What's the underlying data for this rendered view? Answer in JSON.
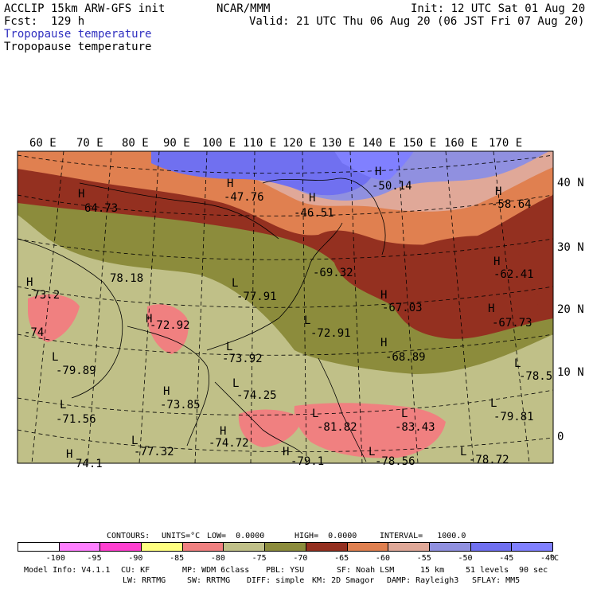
{
  "header": {
    "model_line": "ACCLIP 15km ARW-GFS init",
    "org": "NCAR/MMM",
    "init": "Init: 12 UTC Sat 01 Aug 20",
    "fcst": "Fcst:  129 h",
    "valid": "Valid: 21 UTC Thu 06 Aug 20 (06 JST Fri 07 Aug 20)",
    "field_label_1": "Tropopause temperature",
    "field_label_2": "Tropopause temperature"
  },
  "map": {
    "lon_labels": [
      "60 E",
      "70 E",
      "80 E",
      "90 E",
      "100 E",
      "110 E",
      "120 E",
      "130 E",
      "140 E",
      "150 E",
      "160 E",
      "170 E"
    ],
    "lat_labels": [
      "40 N",
      "30 N",
      "20 N",
      "10 N",
      "0"
    ],
    "extrema": [
      {
        "type": "H",
        "value": "64.73"
      },
      {
        "type": "H",
        "value": "-47.76"
      },
      {
        "type": "H",
        "value": "-46.51"
      },
      {
        "type": "H",
        "value": "-50.14"
      },
      {
        "type": "H",
        "value": "-58.64"
      },
      {
        "type": "H",
        "value": "-73.2"
      },
      {
        "type": "L",
        "value": "78.18"
      },
      {
        "type": "L",
        "value": "-77.91"
      },
      {
        "type": "L",
        "value": "-69.32"
      },
      {
        "type": "H",
        "value": "-62.41"
      },
      {
        "type": "H",
        "value": "-67.03"
      },
      {
        "type": "H",
        "value": "-67.73"
      },
      {
        "type": "L",
        "value": "-74"
      },
      {
        "type": "H",
        "value": "-72.92"
      },
      {
        "type": "L",
        "value": "-72.91"
      },
      {
        "type": "L",
        "value": "-79.89"
      },
      {
        "type": "L",
        "value": "-73.92"
      },
      {
        "type": "H",
        "value": "-68.89"
      },
      {
        "type": "L",
        "value": "-78.5"
      },
      {
        "type": "L",
        "value": "-74.25"
      },
      {
        "type": "H",
        "value": "-73.85"
      },
      {
        "type": "L",
        "value": "-71.56"
      },
      {
        "type": "L",
        "value": "-79.81"
      },
      {
        "type": "L",
        "value": "-81.82"
      },
      {
        "type": "L",
        "value": "-83.43"
      },
      {
        "type": "H",
        "value": "-74.72"
      },
      {
        "type": "L",
        "value": "-77.32"
      },
      {
        "type": "H",
        "value": "-79.1"
      },
      {
        "type": "L",
        "value": "-78.56"
      },
      {
        "type": "L",
        "value": "-78.72"
      },
      {
        "type": "H",
        "value": "74.1"
      }
    ]
  },
  "contour_info": {
    "contours": "CONTOURS:",
    "units": "UNITS=°C",
    "low": "LOW=  0.0000",
    "high": "HIGH=  0.0000",
    "interval": "INTERVAL=   1000.0"
  },
  "colorbar": {
    "colors": [
      "#ffffff",
      "#ff80ff",
      "#ff40d0",
      "#ffff80",
      "#f08080",
      "#c0c088",
      "#8c8c3c",
      "#943020",
      "#e08050",
      "#e0a898",
      "#9090e0",
      "#7070f0",
      "#8080ff"
    ],
    "labels": [
      "-100",
      "-95",
      "-90",
      "-85",
      "-80",
      "-75",
      "-70",
      "-65",
      "-60",
      "-55",
      "-50",
      "-45",
      "-40"
    ],
    "unit": "°C"
  },
  "footer": {
    "line1": [
      "Model Info: V4.1.1",
      "CU: KF",
      "MP: WDM 6class",
      "PBL: YSU",
      "SF: Noah LSM",
      "15 km",
      "51 levels",
      "90 sec"
    ],
    "line2": [
      "LW: RRTMG",
      "SW: RRTMG",
      "DIFF: simple",
      "KM: 2D Smagor",
      "DAMP: Rayleigh3",
      "SFLAY: MM5"
    ]
  }
}
